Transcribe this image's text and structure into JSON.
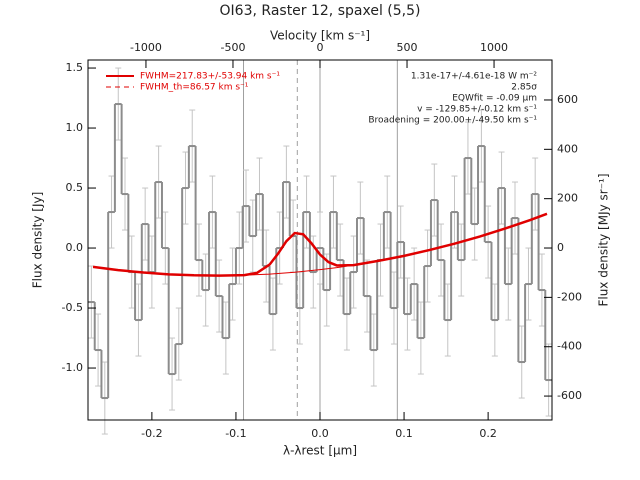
{
  "chart_data": {
    "type": "spectrum",
    "title": "OI63, Raster 12, spaxel (5,5)",
    "xlabel": "λ-λrest [µm]",
    "ylabel": "Flux density [Jy]",
    "x2label": "Velocity [km s⁻¹]",
    "y2label": "Flux density [MJy sr⁻¹]",
    "xlim": [
      -0.276,
      0.276
    ],
    "xticks": [
      -0.2,
      -0.1,
      {
        "value": 0,
        "label": "0.0"
      },
      0.1,
      0.2
    ],
    "ylim": [
      -1.433,
      1.567
    ],
    "yticks": [
      {
        "value": -1,
        "label": "-1.0"
      },
      -0.5,
      {
        "value": 0,
        "label": "0.0"
      },
      0.5,
      {
        "value": 1,
        "label": "1.0"
      },
      1.5
    ],
    "x2lim": [
      -1333,
      1333
    ],
    "x2ticks": [
      -1000,
      -500,
      0,
      500,
      1000
    ],
    "y2lim": [
      -697,
      762
    ],
    "y2ticks": [
      -600,
      -400,
      -200,
      0,
      200,
      400,
      600
    ],
    "vlines": [
      -0.091,
      0,
      0.092
    ],
    "dashed_vline": -0.027,
    "annotations": [
      "1.31e-17+/-4.61e-18 W m⁻²",
      "2.85σ",
      "EQWfit = -0.09 µm",
      "v = -129.85+/-0.12 km s⁻¹",
      "Broadening = 200.00+/-49.50 km s⁻¹"
    ],
    "data": {
      "color": "#8c8c8c",
      "error_color": "#c4c4c4",
      "x": [
        -0.272,
        -0.264,
        -0.256,
        -0.248,
        -0.24,
        -0.232,
        -0.224,
        -0.216,
        -0.208,
        -0.2,
        -0.192,
        -0.184,
        -0.176,
        -0.168,
        -0.16,
        -0.152,
        -0.144,
        -0.136,
        -0.128,
        -0.12,
        -0.112,
        -0.104,
        -0.096,
        -0.088,
        -0.08,
        -0.072,
        -0.064,
        -0.056,
        -0.048,
        -0.04,
        -0.032,
        -0.024,
        -0.016,
        -0.008,
        0.0,
        0.008,
        0.016,
        0.024,
        0.032,
        0.04,
        0.048,
        0.056,
        0.064,
        0.072,
        0.08,
        0.088,
        0.096,
        0.104,
        0.112,
        0.12,
        0.128,
        0.136,
        0.144,
        0.152,
        0.16,
        0.168,
        0.176,
        0.184,
        0.192,
        0.2,
        0.208,
        0.216,
        0.224,
        0.232,
        0.24,
        0.248,
        0.256,
        0.264,
        0.272
      ],
      "values": [
        -0.45,
        -0.85,
        -1.25,
        0.3,
        1.2,
        0.45,
        -0.2,
        -0.6,
        0.2,
        -0.2,
        0.55,
        0.0,
        -1.05,
        -0.8,
        0.5,
        0.85,
        -0.1,
        -0.35,
        0.3,
        -0.4,
        -0.75,
        -0.3,
        0.0,
        0.35,
        0.1,
        0.45,
        -0.15,
        -0.55,
        0.0,
        0.55,
        0.1,
        -0.5,
        0.3,
        -0.2,
        0.0,
        -0.35,
        0.3,
        -0.1,
        -0.55,
        -0.2,
        0.25,
        -0.4,
        -0.85,
        -0.1,
        0.3,
        -0.5,
        0.05,
        -0.55,
        -0.3,
        -0.75,
        -0.15,
        0.4,
        -0.1,
        -0.6,
        0.3,
        -0.1,
        0.75,
        0.2,
        0.85,
        0.05,
        -0.6,
        0.5,
        -0.3,
        0.25,
        -0.95,
        -0.3,
        0.45,
        -0.35,
        -1.1
      ],
      "errors": [
        0.3,
        0.3,
        0.3,
        0.3,
        0.3,
        0.3,
        0.3,
        0.3,
        0.3,
        0.3,
        0.3,
        0.3,
        0.3,
        0.3,
        0.3,
        0.3,
        0.3,
        0.3,
        0.3,
        0.3,
        0.3,
        0.3,
        0.3,
        0.3,
        0.3,
        0.3,
        0.3,
        0.3,
        0.3,
        0.3,
        0.3,
        0.3,
        0.3,
        0.3,
        0.3,
        0.3,
        0.3,
        0.3,
        0.3,
        0.3,
        0.3,
        0.3,
        0.3,
        0.3,
        0.3,
        0.3,
        0.3,
        0.3,
        0.3,
        0.3,
        0.3,
        0.3,
        0.3,
        0.3,
        0.3,
        0.3,
        0.3,
        0.3,
        0.3,
        0.3,
        0.3,
        0.3,
        0.3,
        0.3,
        0.3,
        0.3,
        0.3,
        0.3,
        0.3
      ]
    },
    "series": [
      {
        "name": "FWHM=217.83+/-53.94 km s⁻¹",
        "color": "#e00000",
        "width": 2.5,
        "x": [
          -0.27,
          -0.24,
          -0.21,
          -0.18,
          -0.15,
          -0.12,
          -0.09,
          -0.075,
          -0.06,
          -0.05,
          -0.04,
          -0.03,
          -0.02,
          -0.01,
          0,
          0.01,
          0.02,
          0.04,
          0.07,
          0.1,
          0.13,
          0.16,
          0.19,
          0.22,
          0.25,
          0.27
        ],
        "values": [
          -0.157,
          -0.184,
          -0.204,
          -0.219,
          -0.227,
          -0.23,
          -0.226,
          -0.207,
          -0.138,
          -0.048,
          0.057,
          0.125,
          0.115,
          0.038,
          -0.054,
          -0.117,
          -0.145,
          -0.142,
          -0.106,
          -0.065,
          -0.017,
          0.036,
          0.096,
          0.162,
          0.233,
          0.285
        ]
      },
      {
        "name": "FWHM_th=86.57 km s⁻¹",
        "color": "#e00000",
        "width": 1,
        "dashed": true,
        "x": [
          -0.27,
          -0.24,
          -0.21,
          -0.18,
          -0.15,
          -0.12,
          -0.09,
          -0.06,
          -0.03,
          0,
          0.02,
          0.04,
          0.07,
          0.1,
          0.13,
          0.16,
          0.19,
          0.22,
          0.25,
          0.27
        ],
        "values": [
          -0.157,
          -0.184,
          -0.204,
          -0.219,
          -0.227,
          -0.23,
          -0.226,
          -0.217,
          -0.202,
          -0.18,
          -0.163,
          -0.142,
          -0.106,
          -0.065,
          -0.017,
          0.036,
          0.096,
          0.162,
          0.233,
          0.285
        ]
      }
    ]
  }
}
